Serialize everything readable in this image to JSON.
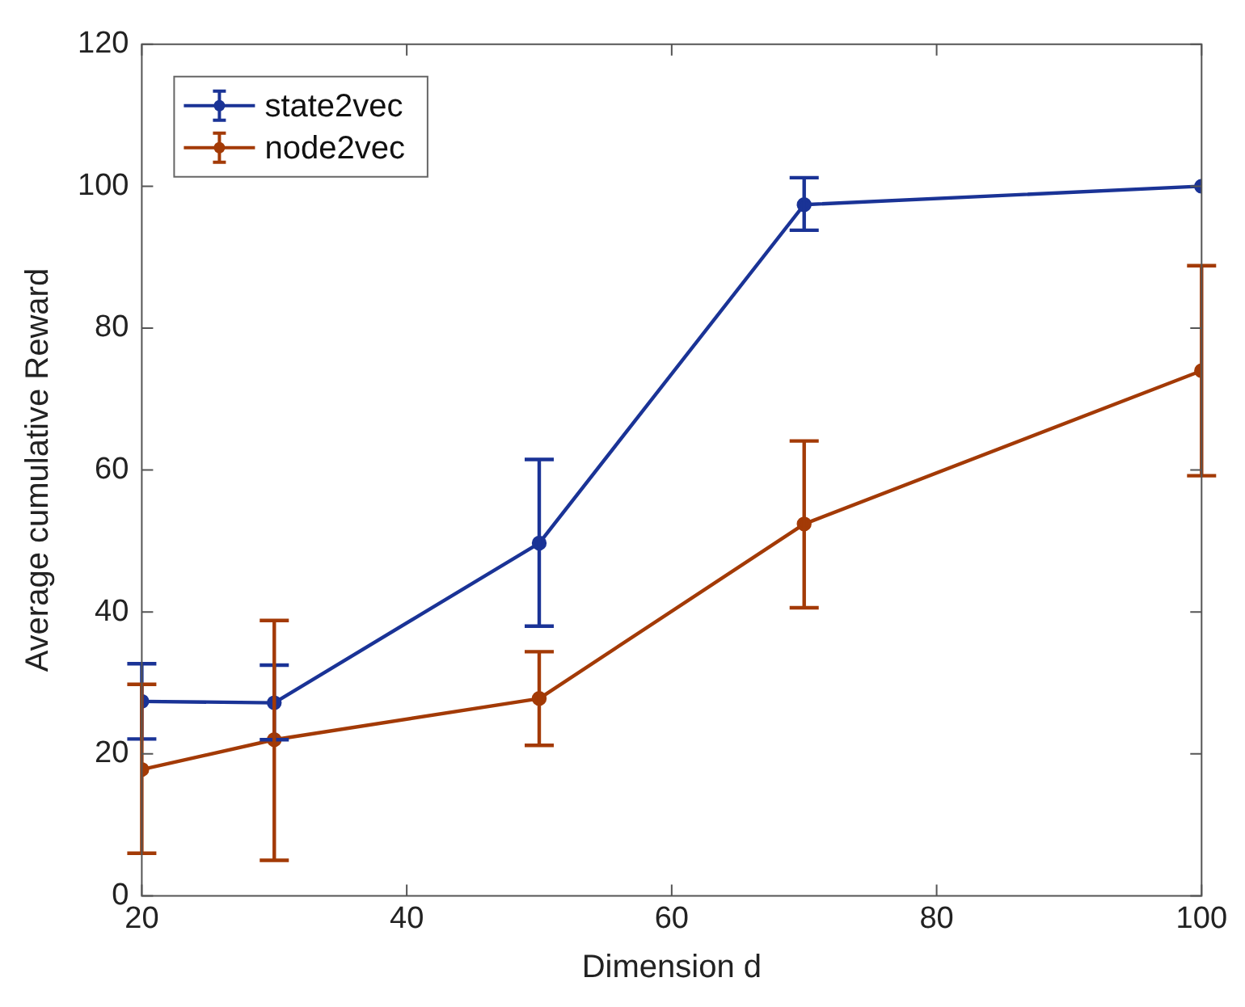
{
  "chart_data": {
    "type": "line",
    "xlabel": "Dimension d",
    "ylabel": "Average cumulative Reward",
    "x": [
      20,
      30,
      50,
      70,
      100
    ],
    "xlim": [
      20,
      100
    ],
    "xticks": [
      20,
      40,
      60,
      80,
      100
    ],
    "ylim": [
      0,
      120
    ],
    "yticks": [
      0,
      20,
      40,
      60,
      80,
      100,
      120
    ],
    "grid": false,
    "legend": "top left",
    "marker": "circle",
    "line_style": "solid",
    "series": [
      {
        "name": "state2vec",
        "color": "#1a3396",
        "values": [
          27.4,
          27.2,
          49.7,
          97.4,
          100
        ],
        "errors": [
          [
            22.1,
            32.7
          ],
          [
            22,
            32.5
          ],
          [
            38,
            61.5
          ],
          [
            93.8,
            101.2
          ],
          null
        ]
      },
      {
        "name": "node2vec",
        "color": "#a33a06",
        "values": [
          17.8,
          22,
          27.8,
          52.4,
          74
        ],
        "errors": [
          [
            6,
            29.8
          ],
          [
            5,
            38.8
          ],
          [
            21.2,
            34.4
          ],
          [
            40.6,
            64.1
          ],
          [
            59.2,
            88.8
          ]
        ]
      }
    ]
  }
}
